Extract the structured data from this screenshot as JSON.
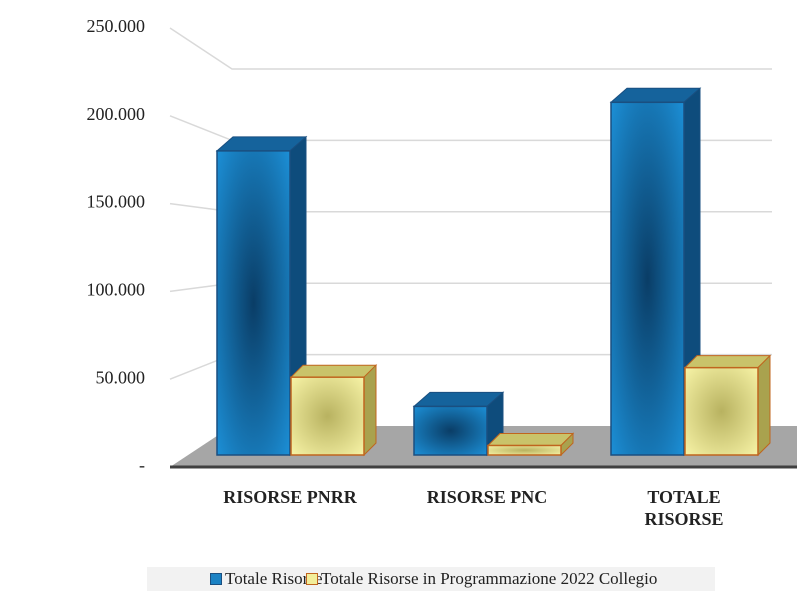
{
  "chart_data": {
    "type": "bar3d",
    "categories": [
      "RISORSE PNRR",
      "RISORSE PNC",
      "TOTALE RISORSE"
    ],
    "series": [
      {
        "name": "Totale Risorse",
        "color": "#1b82c4",
        "values": [
          191500,
          30600,
          222100
        ]
      },
      {
        "name": "Totale Risorse in Programmazione 2022 Collegio",
        "color": "#f2ee9a",
        "values": [
          49000,
          6000,
          55000
        ]
      }
    ],
    "ylim": [
      0,
      250000
    ],
    "yticks": [
      {
        "value": 0,
        "label": "-"
      },
      {
        "value": 50000,
        "label": "50.000"
      },
      {
        "value": 100000,
        "label": "100.000"
      },
      {
        "value": 150000,
        "label": "150.000"
      },
      {
        "value": 200000,
        "label": "200.000"
      },
      {
        "value": 250000,
        "label": "250.000"
      }
    ],
    "grid": true
  }
}
